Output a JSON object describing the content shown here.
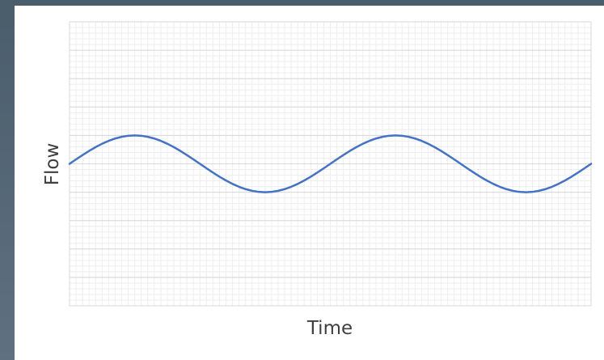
{
  "chart_data": {
    "type": "line",
    "title": "",
    "xlabel": "Time",
    "ylabel": "Flow",
    "grid": true,
    "legend": "none",
    "line_color": "#4472c4",
    "grid_color": "#d9d9d9",
    "x": [
      0,
      0.5,
      1,
      1.5,
      2,
      2.5,
      3,
      3.5,
      4,
      4.5,
      5,
      5.5,
      6,
      6.5,
      7,
      7.5,
      8,
      8.5,
      9,
      9.5,
      10,
      10.5,
      11,
      11.5,
      12,
      12.5,
      13,
      13.5,
      14,
      14.5,
      15,
      15.5,
      16,
      16.5,
      17,
      17.5,
      18,
      18.5,
      19,
      19.5,
      20,
      20.5,
      21,
      21.5,
      22,
      22.5,
      23,
      23.5,
      24,
      24.5,
      25,
      25.5,
      26,
      26.5,
      27,
      27.5,
      28,
      28.5,
      29,
      29.5,
      30,
      30.5,
      31,
      31.5,
      32,
      32.5,
      33,
      33.5,
      34,
      34.5,
      35,
      35.5,
      36,
      36.5,
      37,
      37.5,
      38,
      38.5,
      39,
      39.5,
      40
    ],
    "series": [
      {
        "values": [
          0,
          0.156,
          0.309,
          0.454,
          0.588,
          0.707,
          0.809,
          0.891,
          0.951,
          0.988,
          1,
          0.988,
          0.951,
          0.891,
          0.809,
          0.707,
          0.588,
          0.454,
          0.309,
          0.156,
          0,
          -0.156,
          -0.309,
          -0.454,
          -0.588,
          -0.707,
          -0.809,
          -0.891,
          -0.951,
          -0.988,
          -1,
          -0.988,
          -0.951,
          -0.891,
          -0.809,
          -0.707,
          -0.588,
          -0.454,
          -0.309,
          -0.156,
          0,
          0.156,
          0.309,
          0.454,
          0.588,
          0.707,
          0.809,
          0.891,
          0.951,
          0.988,
          1,
          0.988,
          0.951,
          0.891,
          0.809,
          0.707,
          0.588,
          0.454,
          0.309,
          0.156,
          0,
          -0.156,
          -0.309,
          -0.454,
          -0.588,
          -0.707,
          -0.809,
          -0.891,
          -0.951,
          -0.988,
          -1,
          -0.988,
          -0.951,
          -0.891,
          -0.809,
          -0.707,
          -0.588,
          -0.454,
          -0.309,
          -0.156,
          0
        ]
      }
    ],
    "xlim": [
      0,
      40
    ],
    "ylim": [
      -5,
      5
    ]
  }
}
